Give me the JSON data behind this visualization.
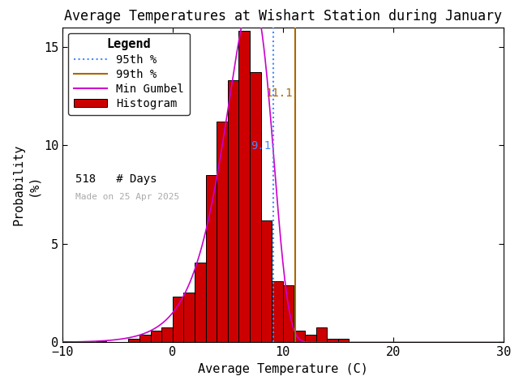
{
  "title": "Average Temperatures at Wishart Station during January",
  "xlabel": "Average Temperature (C)",
  "ylabel": "Probability\n(%)",
  "xlim": [
    -10,
    30
  ],
  "ylim": [
    0,
    16
  ],
  "yticks": [
    0,
    5,
    10,
    15
  ],
  "xticks": [
    -10,
    0,
    10,
    20,
    30
  ],
  "bin_edges": [
    -10,
    -9,
    -8,
    -7,
    -6,
    -5,
    -4,
    -3,
    -2,
    -1,
    0,
    1,
    2,
    3,
    4,
    5,
    6,
    7,
    8,
    9,
    10,
    11,
    12,
    13,
    14,
    15,
    16,
    17,
    18,
    19,
    20
  ],
  "bin_heights": [
    0.04,
    0.04,
    0.0,
    0.04,
    0.0,
    0.0,
    0.19,
    0.39,
    0.58,
    0.77,
    2.32,
    2.51,
    4.05,
    8.49,
    11.2,
    13.32,
    15.83,
    13.71,
    6.18,
    3.09,
    2.9,
    0.58,
    0.39,
    0.77,
    0.19,
    0.19,
    0.0,
    0.0,
    0.0,
    0.0
  ],
  "hist_color": "#cc0000",
  "hist_edgecolor": "#000000",
  "gumbel_color": "#cc00cc",
  "gumbel_mu": 7.2,
  "gumbel_beta": 2.1,
  "pct95_value": 9.1,
  "pct95_color": "#4488ff",
  "pct99_value": 11.1,
  "pct99_color": "#aa6600",
  "n_days": 518,
  "made_on": "Made on 25 Apr 2025",
  "background_color": "#ffffff",
  "title_fontsize": 12,
  "label_fontsize": 11,
  "tick_fontsize": 11,
  "legend_fontsize": 10,
  "annotation_fontsize": 10
}
